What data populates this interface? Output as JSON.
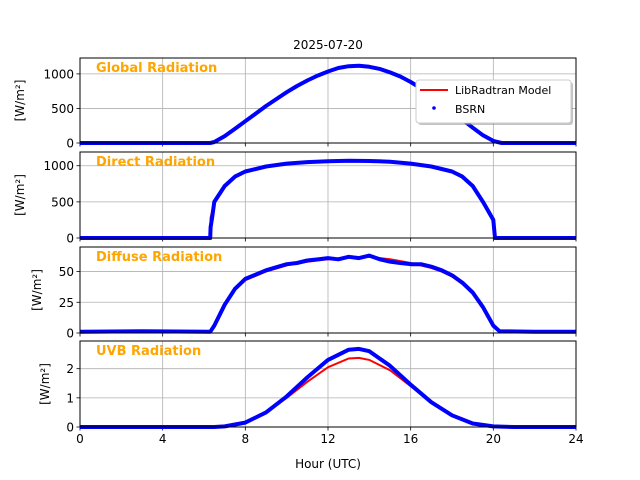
{
  "chart_data": {
    "type": "line",
    "title": "2025-07-20",
    "xlabel": "Hour (UTC)",
    "xlim": [
      0,
      24
    ],
    "xticks": [
      0,
      4,
      8,
      12,
      16,
      20,
      24
    ],
    "grid": true,
    "legend": {
      "placement": "top-right",
      "entries": [
        {
          "name": "LibRadtran Model",
          "color": "#ff0000",
          "style": "line"
        },
        {
          "name": "BSRN",
          "color": "#0000ff",
          "style": "dots"
        }
      ]
    },
    "panels": [
      {
        "label": "Global Radiation",
        "ylabel": "[W/m²]",
        "ylim": [
          0,
          1230
        ],
        "yticks": [
          0,
          500,
          1000
        ],
        "model": [
          [
            0,
            0
          ],
          [
            6.3,
            0
          ],
          [
            6.5,
            20
          ],
          [
            7,
            100
          ],
          [
            7.5,
            200
          ],
          [
            8,
            310
          ],
          [
            8.5,
            420
          ],
          [
            9,
            530
          ],
          [
            9.5,
            630
          ],
          [
            10,
            730
          ],
          [
            10.5,
            820
          ],
          [
            11,
            900
          ],
          [
            11.5,
            970
          ],
          [
            12,
            1030
          ],
          [
            12.5,
            1080
          ],
          [
            13,
            1110
          ],
          [
            13.5,
            1115
          ],
          [
            14,
            1100
          ],
          [
            14.5,
            1070
          ],
          [
            15,
            1020
          ],
          [
            15.5,
            960
          ],
          [
            16,
            880
          ],
          [
            16.5,
            790
          ],
          [
            17,
            690
          ],
          [
            17.5,
            580
          ],
          [
            18,
            460
          ],
          [
            18.5,
            340
          ],
          [
            19,
            220
          ],
          [
            19.5,
            110
          ],
          [
            20,
            30
          ],
          [
            20.4,
            0
          ],
          [
            24,
            0
          ]
        ],
        "bsrn": [
          [
            0,
            0
          ],
          [
            6.3,
            0
          ],
          [
            6.5,
            15
          ],
          [
            7,
            100
          ],
          [
            7.5,
            205
          ],
          [
            8,
            315
          ],
          [
            8.5,
            425
          ],
          [
            9,
            535
          ],
          [
            9.5,
            635
          ],
          [
            10,
            735
          ],
          [
            10.5,
            825
          ],
          [
            11,
            905
          ],
          [
            11.5,
            975
          ],
          [
            12,
            1035
          ],
          [
            12.5,
            1085
          ],
          [
            13,
            1112
          ],
          [
            13.5,
            1118
          ],
          [
            14,
            1102
          ],
          [
            14.5,
            1072
          ],
          [
            15,
            1022
          ],
          [
            15.5,
            962
          ],
          [
            16,
            882
          ],
          [
            16.5,
            792
          ],
          [
            17,
            692
          ],
          [
            17.5,
            582
          ],
          [
            18,
            462
          ],
          [
            18.5,
            342
          ],
          [
            19,
            222
          ],
          [
            19.5,
            112
          ],
          [
            20,
            30
          ],
          [
            20.4,
            0
          ],
          [
            24,
            0
          ]
        ]
      },
      {
        "label": "Direct Radiation",
        "ylabel": "[W/m²]",
        "ylim": [
          0,
          1190
        ],
        "yticks": [
          0,
          500,
          1000
        ],
        "model": [
          [
            0,
            0
          ],
          [
            6.3,
            0
          ],
          [
            6.32,
            280
          ],
          [
            6.5,
            500
          ],
          [
            7,
            720
          ],
          [
            7.5,
            850
          ],
          [
            8,
            920
          ],
          [
            9,
            990
          ],
          [
            10,
            1030
          ],
          [
            11,
            1050
          ],
          [
            12,
            1060
          ],
          [
            13,
            1065
          ],
          [
            14,
            1065
          ],
          [
            15,
            1055
          ],
          [
            16,
            1030
          ],
          [
            17,
            990
          ],
          [
            18,
            920
          ],
          [
            18.5,
            850
          ],
          [
            19,
            720
          ],
          [
            19.5,
            500
          ],
          [
            20,
            250
          ],
          [
            20.08,
            0
          ],
          [
            24,
            0
          ]
        ],
        "bsrn": [
          [
            0,
            0
          ],
          [
            6.3,
            0
          ],
          [
            6.32,
            150
          ],
          [
            6.4,
            300
          ],
          [
            6.5,
            500
          ],
          [
            7,
            720
          ],
          [
            7.5,
            850
          ],
          [
            8,
            920
          ],
          [
            9,
            990
          ],
          [
            10,
            1030
          ],
          [
            11,
            1050
          ],
          [
            12,
            1062
          ],
          [
            13,
            1068
          ],
          [
            14,
            1066
          ],
          [
            15,
            1056
          ],
          [
            16,
            1030
          ],
          [
            17,
            990
          ],
          [
            18,
            920
          ],
          [
            18.5,
            850
          ],
          [
            19,
            720
          ],
          [
            19.5,
            500
          ],
          [
            20,
            250
          ],
          [
            20.08,
            0
          ],
          [
            24,
            0
          ]
        ]
      },
      {
        "label": "Diffuse Radiation",
        "ylabel": "[W/m²]",
        "ylim": [
          0,
          70
        ],
        "yticks": [
          0,
          25,
          50
        ],
        "model": [
          [
            0,
            1
          ],
          [
            6.3,
            1
          ],
          [
            6.5,
            5
          ],
          [
            7,
            22
          ],
          [
            7.5,
            35
          ],
          [
            8,
            43
          ],
          [
            9,
            50
          ],
          [
            10,
            55
          ],
          [
            11,
            58
          ],
          [
            12,
            60
          ],
          [
            13,
            61.5
          ],
          [
            14,
            62
          ],
          [
            15,
            60
          ],
          [
            16,
            57
          ],
          [
            17,
            53
          ],
          [
            17.5,
            50
          ],
          [
            18,
            46
          ],
          [
            18.5,
            40
          ],
          [
            19,
            32
          ],
          [
            19.5,
            20
          ],
          [
            20,
            5
          ],
          [
            20.3,
            1
          ],
          [
            24,
            1
          ]
        ],
        "bsrn": [
          [
            0,
            1
          ],
          [
            3,
            1.5
          ],
          [
            6.3,
            1
          ],
          [
            6.5,
            6
          ],
          [
            7,
            23
          ],
          [
            7.5,
            36
          ],
          [
            8,
            44
          ],
          [
            9,
            51
          ],
          [
            10,
            56
          ],
          [
            10.5,
            57
          ],
          [
            11,
            59
          ],
          [
            11.5,
            60
          ],
          [
            12,
            61
          ],
          [
            12.5,
            60
          ],
          [
            13,
            62
          ],
          [
            13.5,
            61
          ],
          [
            14,
            63
          ],
          [
            14.5,
            60
          ],
          [
            15,
            58
          ],
          [
            15.5,
            57
          ],
          [
            16,
            56
          ],
          [
            16.5,
            56
          ],
          [
            17,
            54
          ],
          [
            17.5,
            51
          ],
          [
            18,
            47
          ],
          [
            18.5,
            41
          ],
          [
            19,
            33
          ],
          [
            19.5,
            21
          ],
          [
            20,
            6
          ],
          [
            20.3,
            1.5
          ],
          [
            22,
            1
          ],
          [
            24,
            1
          ]
        ]
      },
      {
        "label": "UVB Radiation",
        "ylabel": "[W/m²]",
        "ylim": [
          0,
          2.95
        ],
        "yticks": [
          0,
          1,
          2
        ],
        "model": [
          [
            0,
            0
          ],
          [
            6.5,
            0
          ],
          [
            7,
            0.02
          ],
          [
            8,
            0.15
          ],
          [
            9,
            0.5
          ],
          [
            10,
            1.0
          ],
          [
            11,
            1.55
          ],
          [
            12,
            2.05
          ],
          [
            13,
            2.35
          ],
          [
            13.5,
            2.37
          ],
          [
            14,
            2.3
          ],
          [
            15,
            1.95
          ],
          [
            16,
            1.4
          ],
          [
            17,
            0.85
          ],
          [
            18,
            0.4
          ],
          [
            19,
            0.12
          ],
          [
            20,
            0.02
          ],
          [
            21,
            0
          ],
          [
            24,
            0
          ]
        ],
        "bsrn": [
          [
            0,
            0
          ],
          [
            6.5,
            0
          ],
          [
            7,
            0.02
          ],
          [
            8,
            0.15
          ],
          [
            9,
            0.5
          ],
          [
            10,
            1.05
          ],
          [
            11,
            1.7
          ],
          [
            12,
            2.3
          ],
          [
            13,
            2.65
          ],
          [
            13.5,
            2.68
          ],
          [
            14,
            2.6
          ],
          [
            15,
            2.1
          ],
          [
            16,
            1.45
          ],
          [
            17,
            0.85
          ],
          [
            18,
            0.4
          ],
          [
            19,
            0.12
          ],
          [
            20,
            0.02
          ],
          [
            21,
            0
          ],
          [
            24,
            0
          ]
        ]
      }
    ]
  }
}
